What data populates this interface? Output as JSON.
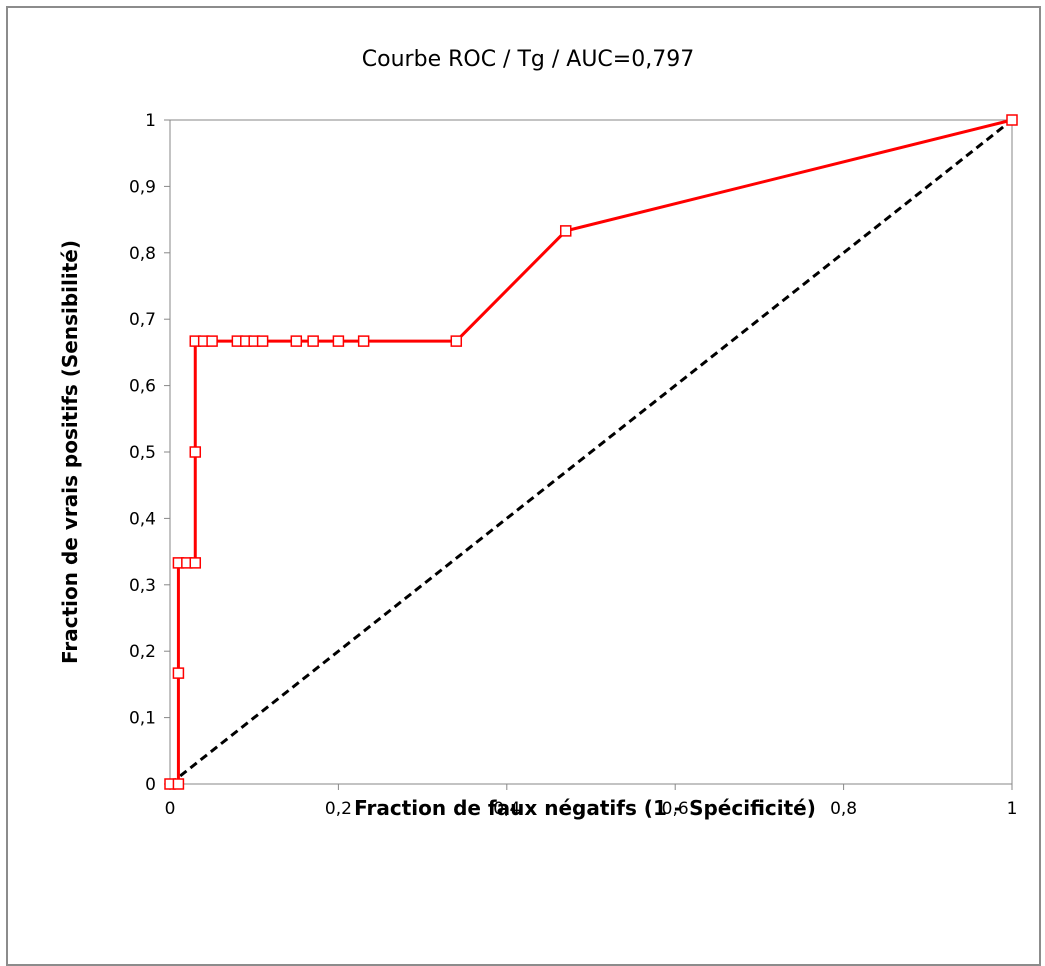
{
  "chart_data": {
    "type": "line",
    "title": "Courbe ROC / Tg / AUC=0,797",
    "xlabel": "Fraction de faux négatifs (1 - Spécificité)",
    "ylabel": "Fraction de vrais positifs (Sensibilité)",
    "xlim": [
      0,
      1
    ],
    "ylim": [
      0,
      1
    ],
    "x_ticks": [
      "0",
      "0,2",
      "0,4",
      "0,6",
      "0,8",
      "1"
    ],
    "y_ticks": [
      "0",
      "0,1",
      "0,2",
      "0,3",
      "0,4",
      "0,5",
      "0,6",
      "0,7",
      "0,8",
      "0,9",
      "1"
    ],
    "x_tick_values": [
      0,
      0.2,
      0.4,
      0.6,
      0.8,
      1
    ],
    "y_tick_values": [
      0,
      0.1,
      0.2,
      0.3,
      0.4,
      0.5,
      0.6,
      0.7,
      0.8,
      0.9,
      1
    ],
    "grid": false,
    "legend": "none",
    "series": [
      {
        "color": "#ff0000",
        "marker": "square",
        "x": [
          0,
          0.01,
          0.01,
          0.01,
          0.02,
          0.03,
          0.03,
          0.03,
          0.04,
          0.05,
          0.08,
          0.09,
          0.1,
          0.11,
          0.15,
          0.17,
          0.2,
          0.23,
          0.34,
          0.47,
          1
        ],
        "y": [
          0,
          0,
          0.167,
          0.333,
          0.333,
          0.333,
          0.5,
          0.667,
          0.667,
          0.667,
          0.667,
          0.667,
          0.667,
          0.667,
          0.667,
          0.667,
          0.667,
          0.667,
          0.667,
          0.833,
          1
        ]
      },
      {
        "color": "#000000",
        "style": "dashed",
        "marker": "none",
        "x": [
          0,
          1
        ],
        "y": [
          0,
          1
        ]
      }
    ]
  }
}
